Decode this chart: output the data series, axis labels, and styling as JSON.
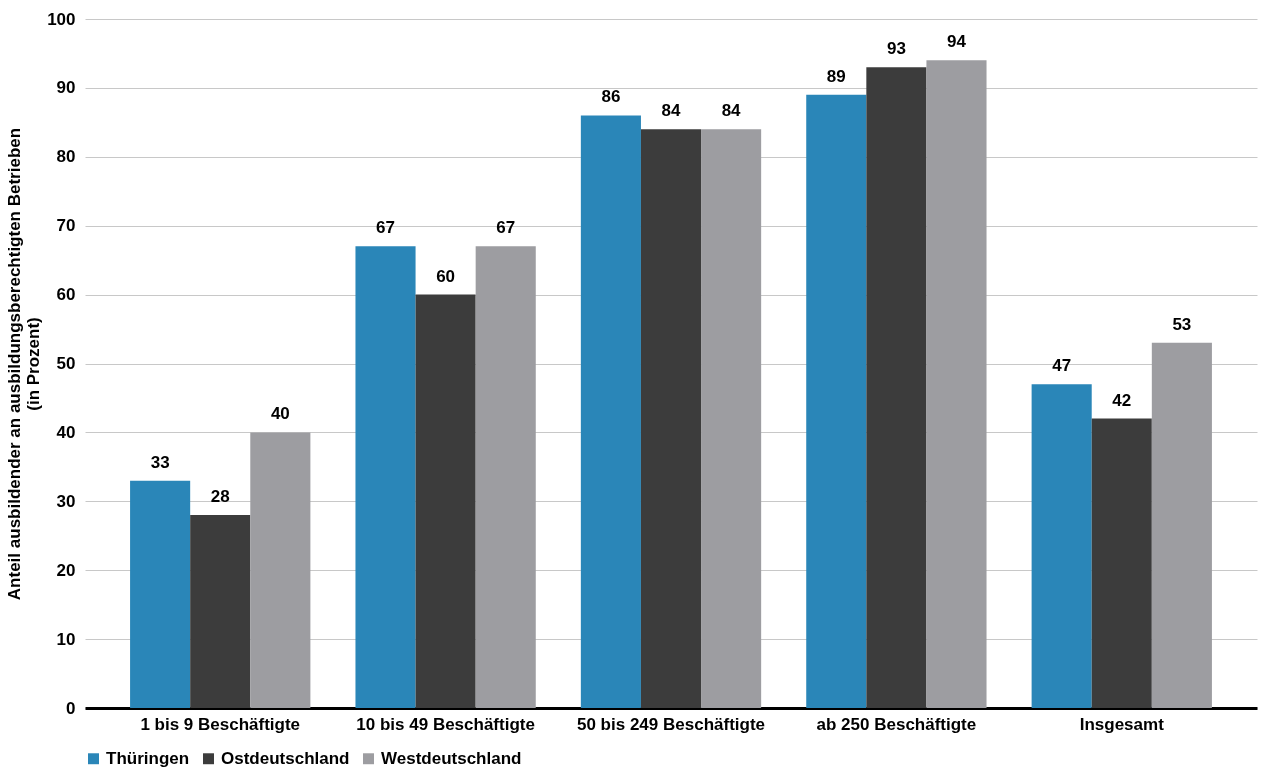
{
  "chart_data": {
    "type": "bar",
    "ylabel": "Anteil ausbildender an ausbildungsberechtigten Betrieben\n(in Prozent)",
    "categories": [
      "1 bis 9 Beschäftigte",
      "10 bis 49 Beschäftigte",
      "50 bis 249 Beschäftigte",
      "ab 250 Beschäftigte",
      "Insgesamt"
    ],
    "series": [
      {
        "name": "Thüringen",
        "color": "#2a86b8",
        "values": [
          33,
          67,
          86,
          89,
          47
        ]
      },
      {
        "name": "Ostdeutschland",
        "color": "#3c3c3c",
        "values": [
          28,
          60,
          84,
          93,
          42
        ]
      },
      {
        "name": "Westdeutschland",
        "color": "#9d9da1",
        "values": [
          40,
          67,
          84,
          94,
          53
        ]
      }
    ],
    "ylim": [
      0,
      100
    ],
    "yticks": [
      0,
      10,
      20,
      30,
      40,
      50,
      60,
      70,
      80,
      90,
      100
    ],
    "grid": "y",
    "legend": "bottom",
    "data_labels": true
  }
}
